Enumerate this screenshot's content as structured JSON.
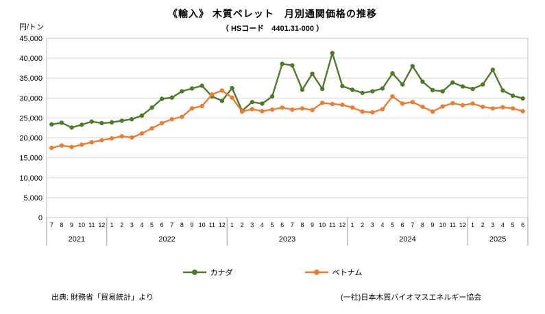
{
  "title": "《輸入》 木質ペレット　月別通関価格の推移",
  "subtitle": "（ HSコード　4401.31-000 ）",
  "footer": {
    "source": "出典: 財務省「貿易統計」より",
    "credit": "(一社)日本木質バイオマスエネルギー協会"
  },
  "chart_data": {
    "type": "line",
    "y_unit": "円/トン",
    "ylim": [
      0,
      45000
    ],
    "y_tick_step": 5000,
    "grid": true,
    "legend_position": "bottom",
    "x_groups": [
      {
        "year": "2021",
        "months": [
          7,
          8,
          9,
          10,
          11,
          12
        ]
      },
      {
        "year": "2022",
        "months": [
          1,
          2,
          3,
          4,
          5,
          6,
          7,
          8,
          9,
          10,
          11,
          12
        ]
      },
      {
        "year": "2023",
        "months": [
          1,
          2,
          3,
          4,
          5,
          6,
          7,
          8,
          9,
          10,
          11,
          12
        ]
      },
      {
        "year": "2024",
        "months": [
          1,
          2,
          3,
          4,
          5,
          6,
          7,
          8,
          9,
          10,
          11,
          12
        ]
      },
      {
        "year": "2025",
        "months": [
          1,
          2,
          3,
          4,
          5,
          6
        ]
      }
    ],
    "series": [
      {
        "name": "カナダ",
        "color": "#4f7a28",
        "values": [
          23400,
          23800,
          22600,
          23300,
          24100,
          23700,
          23900,
          24300,
          24700,
          25600,
          27600,
          29800,
          30100,
          31700,
          32400,
          33100,
          30400,
          29300,
          32500,
          26800,
          29000,
          28600,
          30400,
          38600,
          38200,
          32100,
          36100,
          32300,
          41300,
          33000,
          32100,
          31300,
          31700,
          32400,
          36200,
          33400,
          38000,
          34100,
          32000,
          31700,
          33900,
          32900,
          32300,
          33400,
          37100,
          31900,
          30600,
          29900
        ]
      },
      {
        "name": "ベトナム",
        "color": "#ed7d31",
        "values": [
          17500,
          18100,
          17700,
          18300,
          18900,
          19400,
          19900,
          20400,
          20100,
          21100,
          22400,
          23700,
          24700,
          25300,
          27400,
          28000,
          30900,
          31900,
          30100,
          26600,
          27200,
          26700,
          27100,
          27600,
          27100,
          27400,
          27000,
          28800,
          28500,
          28300,
          27600,
          26600,
          26400,
          27200,
          30400,
          28600,
          29000,
          27800,
          26600,
          27900,
          28700,
          28200,
          28600,
          27800,
          27400,
          27700,
          27400,
          26700
        ]
      }
    ]
  }
}
